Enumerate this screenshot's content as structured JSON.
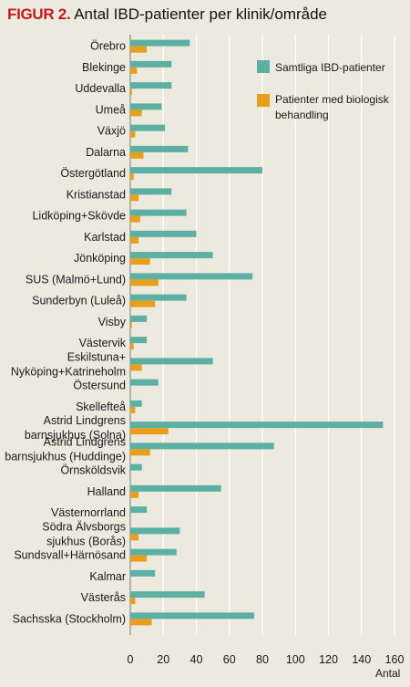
{
  "figure_label": "FIGUR 2.",
  "title": "Antal IBD-patienter per klinik/område",
  "colors": {
    "all": "#5bb0a3",
    "bio": "#e8a01c",
    "grid": "#ffffff",
    "background": "#ece9df"
  },
  "chart_data": {
    "type": "bar",
    "orientation": "horizontal",
    "title": "Antal IBD-patienter per klinik/område",
    "xlabel": "Antal",
    "ylabel": "",
    "xlim": [
      0,
      160
    ],
    "xticks": [
      0,
      20,
      40,
      60,
      80,
      100,
      120,
      140,
      160
    ],
    "grid": true,
    "legend_position": "top-right",
    "categories": [
      [
        "Örebro"
      ],
      [
        "Blekinge"
      ],
      [
        "Uddevalla"
      ],
      [
        "Umeå"
      ],
      [
        "Växjö"
      ],
      [
        "Dalarna"
      ],
      [
        "Östergötland"
      ],
      [
        "Kristianstad"
      ],
      [
        "Lidköping+Skövde"
      ],
      [
        "Karlstad"
      ],
      [
        "Jönköping"
      ],
      [
        "SUS (Malmö+Lund)"
      ],
      [
        "Sunderbyn (Luleå)"
      ],
      [
        "Visby"
      ],
      [
        "Västervik"
      ],
      [
        "Eskilstuna+",
        "Nyköping+Katrineholm"
      ],
      [
        "Östersund"
      ],
      [
        "Skellefteå"
      ],
      [
        "Astrid Lindgrens",
        "barnsjukhus (Solna)"
      ],
      [
        "Astrid Lindgrens",
        "barnsjukhus (Huddinge)"
      ],
      [
        "Örnsköldsvik"
      ],
      [
        "Halland"
      ],
      [
        "Västernorrland"
      ],
      [
        "Södra Älvsborgs",
        "sjukhus (Borås)"
      ],
      [
        "Sundsvall+Härnösand"
      ],
      [
        "Kalmar"
      ],
      [
        "Västerås"
      ],
      [
        "Sachsska (Stockholm)"
      ]
    ],
    "series": [
      {
        "name": "Samtliga IBD-patienter",
        "values": [
          36,
          25,
          25,
          19,
          21,
          35,
          80,
          25,
          34,
          40,
          50,
          74,
          34,
          10,
          10,
          50,
          17,
          7,
          153,
          87,
          7,
          55,
          10,
          30,
          28,
          15,
          45,
          75
        ]
      },
      {
        "name": "Patienter med biologisk behandling",
        "values": [
          10,
          4,
          1,
          7,
          3,
          8,
          2,
          5,
          6,
          5,
          12,
          17,
          15,
          1,
          2,
          7,
          0,
          3,
          23,
          12,
          0,
          5,
          0,
          5,
          10,
          0,
          3,
          13
        ]
      }
    ],
    "legend": [
      "Samtliga IBD-patienter",
      "Patienter med biologisk behandling"
    ]
  }
}
